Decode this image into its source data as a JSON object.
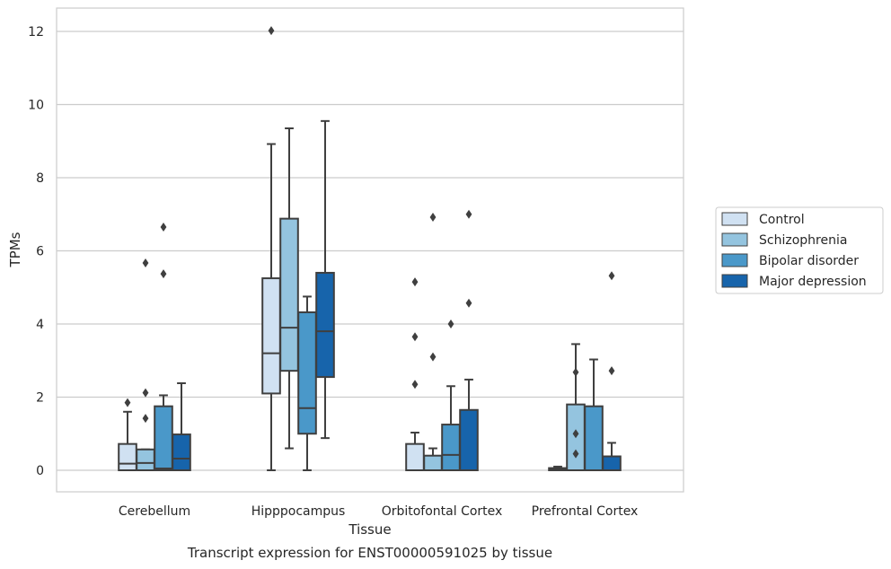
{
  "chart_data": {
    "type": "box",
    "title": "Transcript expression for ENST00000591025 by tissue",
    "xlabel": "Tissue",
    "ylabel": "TPMs",
    "ylim": [
      -0.55,
      12.65
    ],
    "yticks": [
      0,
      2,
      4,
      6,
      8,
      10,
      12
    ],
    "grid": true,
    "legend_position": "right",
    "categories": [
      "Cerebellum",
      "Hipppocampus",
      "Orbitofontal Cortex",
      "Prefrontal Cortex"
    ],
    "series": [
      {
        "name": "Control",
        "color": "#d0e1f2",
        "boxes": [
          {
            "min": 0,
            "q1": 0,
            "median": 0.18,
            "q3": 0.72,
            "max": 1.6,
            "outliers": [
              1.85
            ]
          },
          {
            "min": 0,
            "q1": 2.1,
            "median": 3.2,
            "q3": 5.25,
            "max": 8.92,
            "outliers": [
              12.02
            ]
          },
          {
            "min": 0,
            "q1": 0,
            "median": 0,
            "q3": 0.72,
            "max": 1.03,
            "outliers": [
              2.35,
              3.65,
              5.15
            ]
          },
          {
            "min": 0,
            "q1": 0,
            "median": 0.03,
            "q3": 0.06,
            "max": 0.1,
            "outliers": []
          }
        ]
      },
      {
        "name": "Schizophrenia",
        "color": "#94c4df",
        "boxes": [
          {
            "min": 0,
            "q1": 0,
            "median": 0.2,
            "q3": 0.57,
            "max": 0.57,
            "outliers": [
              1.42,
              2.12,
              5.67
            ]
          },
          {
            "min": 0.6,
            "q1": 2.72,
            "median": 3.9,
            "q3": 6.88,
            "max": 9.35,
            "outliers": []
          },
          {
            "min": 0,
            "q1": 0,
            "median": 0,
            "q3": 0.4,
            "max": 0.6,
            "outliers": [
              3.1,
              6.92
            ]
          },
          {
            "min": 0,
            "q1": 0,
            "median": 0,
            "q3": 1.8,
            "max": 3.45,
            "outliers": [
              0.45,
              1.0,
              2.68
            ]
          }
        ]
      },
      {
        "name": "Bipolar disorder",
        "color": "#4a98c9",
        "boxes": [
          {
            "min": 0,
            "q1": 0,
            "median": 0.05,
            "q3": 1.75,
            "max": 2.05,
            "outliers": [
              5.37,
              6.65
            ]
          },
          {
            "min": 0,
            "q1": 1.0,
            "median": 1.7,
            "q3": 4.32,
            "max": 4.75,
            "outliers": []
          },
          {
            "min": 0,
            "q1": 0,
            "median": 0.42,
            "q3": 1.25,
            "max": 2.3,
            "outliers": [
              4.0
            ]
          },
          {
            "min": 0,
            "q1": 0,
            "median": 0,
            "q3": 1.75,
            "max": 3.03,
            "outliers": []
          }
        ]
      },
      {
        "name": "Major depression",
        "color": "#1764ab",
        "boxes": [
          {
            "min": 0,
            "q1": 0,
            "median": 0.32,
            "q3": 0.98,
            "max": 2.38,
            "outliers": []
          },
          {
            "min": 0.88,
            "q1": 2.55,
            "median": 3.8,
            "q3": 5.4,
            "max": 9.55,
            "outliers": []
          },
          {
            "min": 0,
            "q1": 0,
            "median": 0,
            "q3": 1.65,
            "max": 2.48,
            "outliers": [
              4.57,
              7.0
            ]
          },
          {
            "min": 0,
            "q1": 0,
            "median": 0,
            "q3": 0.38,
            "max": 0.75,
            "outliers": [
              2.72,
              5.32
            ]
          }
        ]
      }
    ]
  }
}
